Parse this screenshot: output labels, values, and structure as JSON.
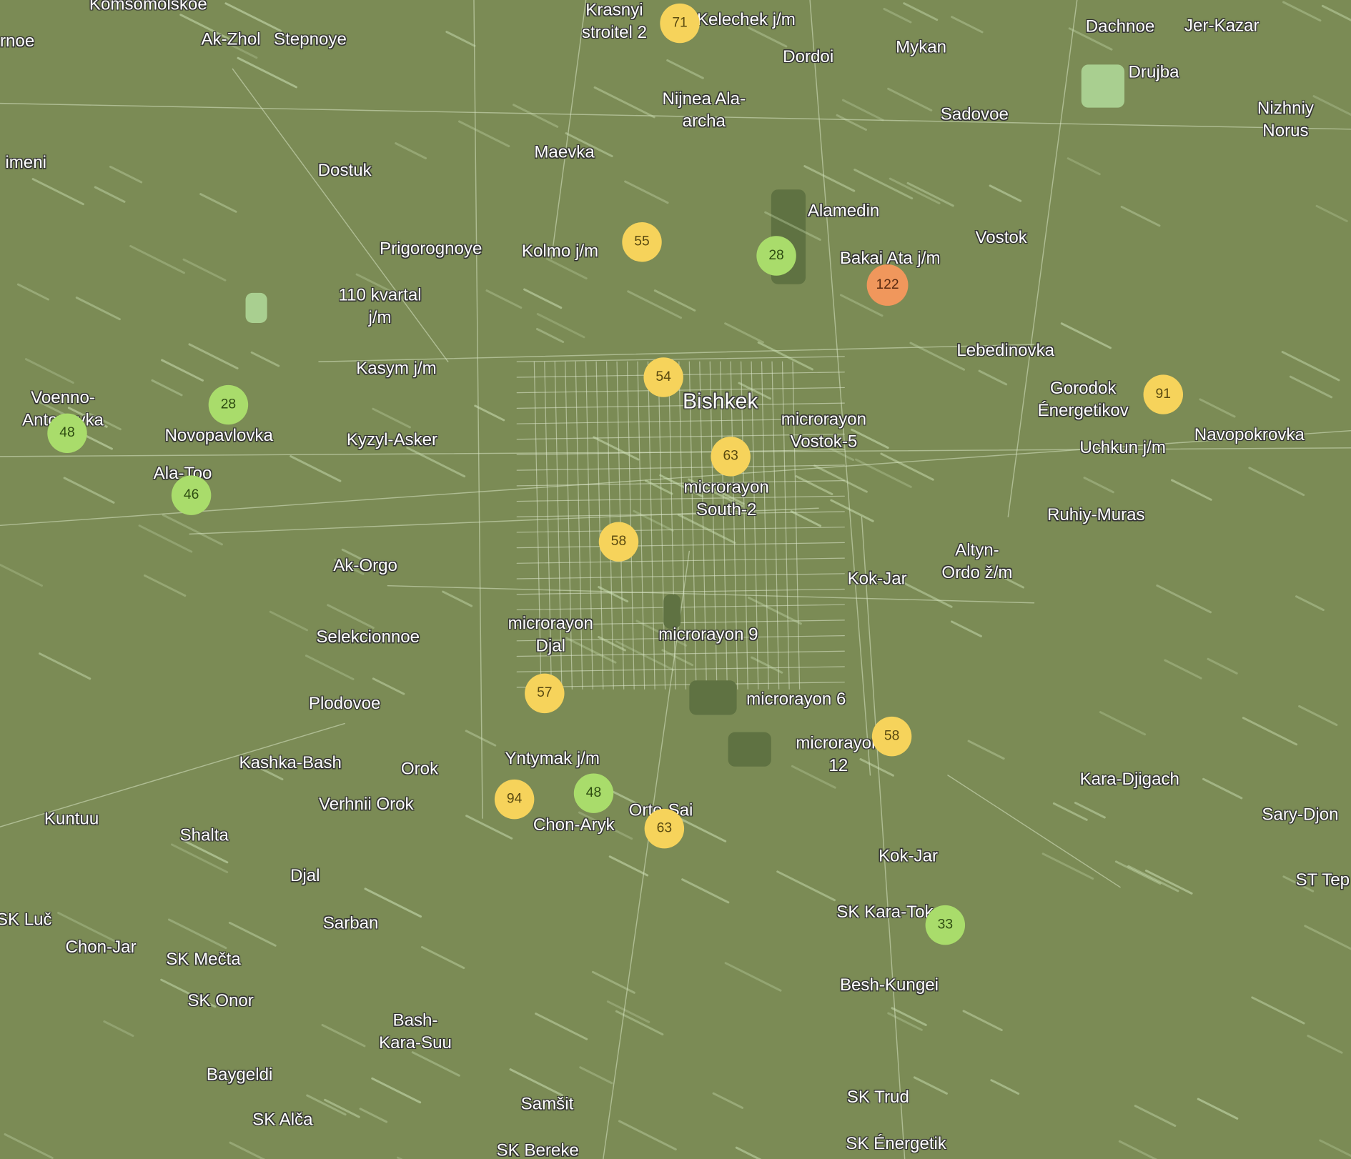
{
  "map": {
    "marker_colors": {
      "good": "#a9dc6b",
      "moderate": "#f6d35b",
      "unhealthy_sensitive": "#f0975c"
    },
    "background_color": "#7b8b55",
    "places": [
      "Komsomolskoe",
      "rnoe",
      "Ak-Zhol",
      "Stepnoye",
      "Krasnyi\nstroitel 2",
      "Kelechek j/m",
      "Dordoi",
      "Mykan",
      "Dachnoe",
      "Jer-Kazar",
      "Drujba",
      "Nijnea Ala-\narcha",
      "Sadovoe",
      "Nizhniy\nNorus",
      "imeni",
      "Maevka",
      "Dostuk",
      "Alamedin",
      "Prigorognoye",
      "Kolmo j/m",
      "Bakai Ata j/m",
      "Vostok",
      "110 kvartal\nj/m",
      "Lebedinovka",
      "Kasym j/m",
      "Gorodok\nÉnergetikov",
      "Voenno-\nAntonovka",
      "Bishkek",
      "microrayon\nVostok-5",
      "Navopokrovka",
      "Novopavlovka",
      "Kyzyl-Asker",
      "Uchkun j/m",
      "Ala-Too",
      "microrayon\nSouth-2",
      "Ruhiy-Muras",
      "Altyn-\nOrdo ž/m",
      "Ak-Orgo",
      "Kok-Jar",
      "microrayon\nDjal",
      "microrayon 9",
      "Selekcionnoe",
      "Plodovoe",
      "microrayon 6",
      "microrayon\n12",
      "Kashka-Bash",
      "Orok",
      "Yntymak j/m",
      "Kara-Djigach",
      "Verhnii Orok",
      "Orto-Sai",
      "Chon-Aryk",
      "Kuntuu",
      "Shalta",
      "Sary-Djon",
      "Kok-Jar",
      "Djal",
      "ST Tep",
      "SK Luč",
      "SK Kara-Tok",
      "Sarban",
      "Chon-Jar",
      "SK Mečta",
      "Besh-Kungei",
      "SK Onor",
      "Bash-\nKara-Suu",
      "Baygeldi",
      "SK Trud",
      "Samšit",
      "SK Alča",
      "SK Énergetik",
      "SK Bereke"
    ],
    "markers": [
      {
        "value": "71",
        "level": "moderate"
      },
      {
        "value": "55",
        "level": "moderate"
      },
      {
        "value": "28",
        "level": "good"
      },
      {
        "value": "122",
        "level": "unhealthy_sensitive"
      },
      {
        "value": "54",
        "level": "moderate"
      },
      {
        "value": "91",
        "level": "moderate"
      },
      {
        "value": "28",
        "level": "good"
      },
      {
        "value": "48",
        "level": "good"
      },
      {
        "value": "63",
        "level": "moderate"
      },
      {
        "value": "46",
        "level": "good"
      },
      {
        "value": "58",
        "level": "moderate"
      },
      {
        "value": "57",
        "level": "moderate"
      },
      {
        "value": "58",
        "level": "moderate"
      },
      {
        "value": "94",
        "level": "moderate"
      },
      {
        "value": "48",
        "level": "good"
      },
      {
        "value": "63",
        "level": "moderate"
      },
      {
        "value": "33",
        "level": "good"
      }
    ]
  }
}
